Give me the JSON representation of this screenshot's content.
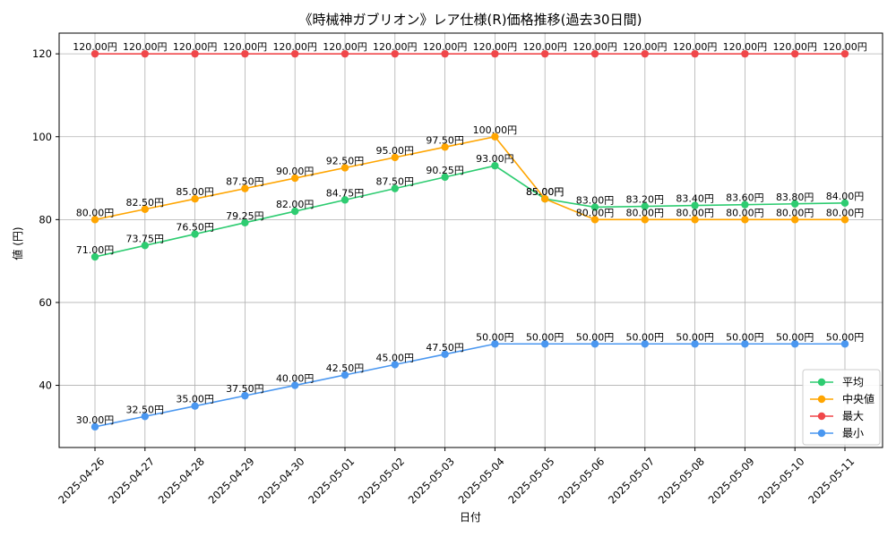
{
  "chart_data": {
    "type": "line",
    "title": "《時械神ガブリオン》レア仕様(R)価格推移(過去30日間)",
    "xlabel": "日付",
    "ylabel": "値 (円)",
    "categories": [
      "2025-04-26",
      "2025-04-27",
      "2025-04-28",
      "2025-04-29",
      "2025-04-30",
      "2025-05-01",
      "2025-05-02",
      "2025-05-03",
      "2025-05-04",
      "2025-05-05",
      "2025-05-06",
      "2025-05-07",
      "2025-05-08",
      "2025-05-09",
      "2025-05-10",
      "2025-05-11"
    ],
    "ylim": [
      25,
      125
    ],
    "yticks": [
      40,
      60,
      80,
      100,
      120
    ],
    "grid": true,
    "legend_position": "lower-right",
    "value_suffix": "円",
    "series": [
      {
        "name": "平均",
        "color": "#2ecc71",
        "values": [
          71.0,
          73.75,
          76.5,
          79.25,
          82.0,
          84.75,
          87.5,
          90.25,
          93.0,
          85.0,
          83.0,
          83.2,
          83.4,
          83.6,
          83.8,
          84.0
        ]
      },
      {
        "name": "中央値",
        "color": "#ffa500",
        "values": [
          80.0,
          82.5,
          85.0,
          87.5,
          90.0,
          92.5,
          95.0,
          97.5,
          100.0,
          85.0,
          80.0,
          80.0,
          80.0,
          80.0,
          80.0,
          80.0
        ]
      },
      {
        "name": "最大",
        "color": "#f0474a",
        "values": [
          120.0,
          120.0,
          120.0,
          120.0,
          120.0,
          120.0,
          120.0,
          120.0,
          120.0,
          120.0,
          120.0,
          120.0,
          120.0,
          120.0,
          120.0,
          120.0
        ]
      },
      {
        "name": "最小",
        "color": "#4a97f0",
        "values": [
          30.0,
          32.5,
          35.0,
          37.5,
          40.0,
          42.5,
          45.0,
          47.5,
          50.0,
          50.0,
          50.0,
          50.0,
          50.0,
          50.0,
          50.0,
          50.0
        ]
      }
    ]
  }
}
